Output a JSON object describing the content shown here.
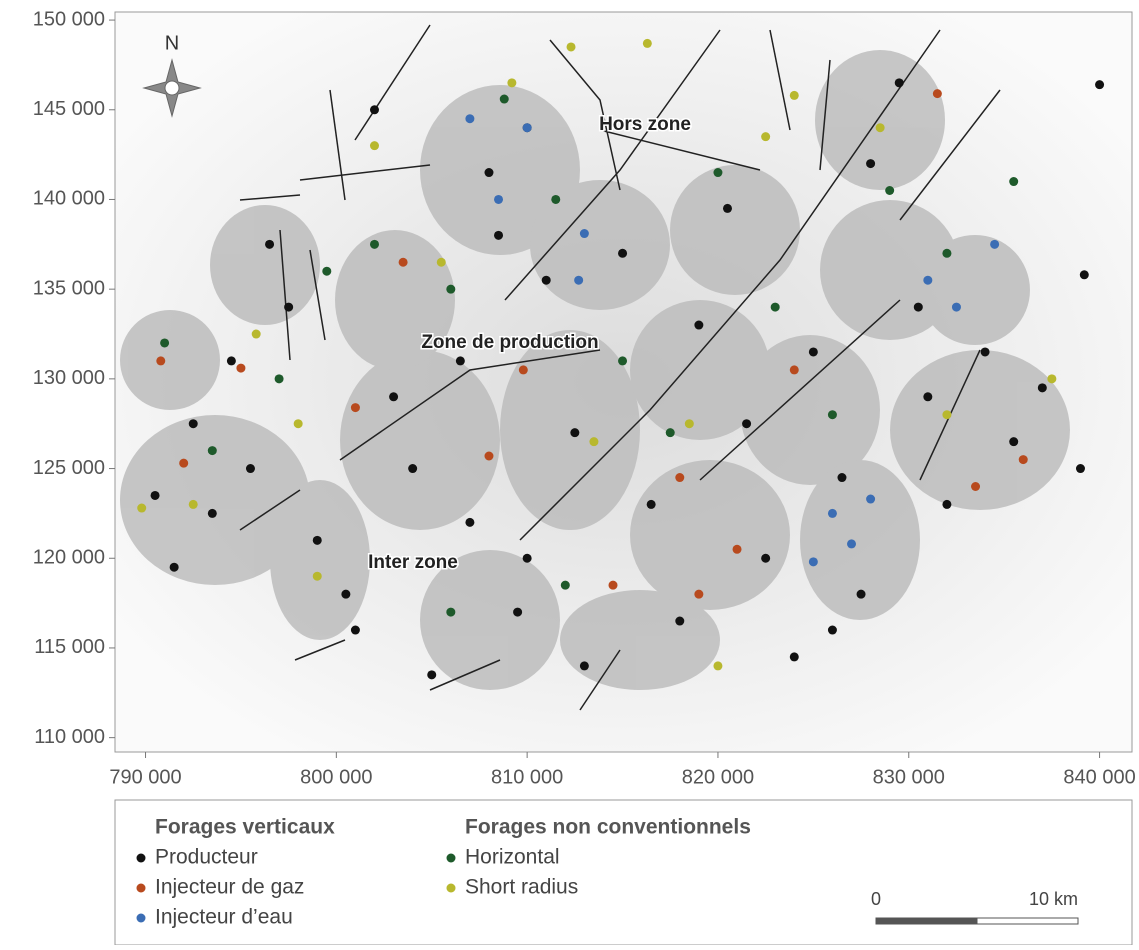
{
  "chart_data": {
    "type": "scatter",
    "north_label": "N",
    "annotations": [
      "Hors zone",
      "Zone de production",
      "Inter zone"
    ],
    "legend_groups": [
      "Forages verticaux",
      "Forages non conventionnels"
    ],
    "scale_bar_labels": [
      "0",
      "10 km"
    ],
    "xlim": [
      788400,
      841700
    ],
    "ylim": [
      109200,
      150450
    ],
    "grid": false,
    "xticks": [
      {
        "value": 790000,
        "label": "790 000"
      },
      {
        "value": 800000,
        "label": "800 000"
      },
      {
        "value": 810000,
        "label": "810 000"
      },
      {
        "value": 820000,
        "label": "820 000"
      },
      {
        "value": 830000,
        "label": "830 000"
      },
      {
        "value": 840000,
        "label": "840 000"
      }
    ],
    "yticks": [
      {
        "value": 110000,
        "label": "110 000"
      },
      {
        "value": 115000,
        "label": "115 000"
      },
      {
        "value": 120000,
        "label": "120 000"
      },
      {
        "value": 125000,
        "label": "125 000"
      },
      {
        "value": 130000,
        "label": "130 000"
      },
      {
        "value": 135000,
        "label": "135 000"
      },
      {
        "value": 140000,
        "label": "140 000"
      },
      {
        "value": 145000,
        "label": "145 000"
      },
      {
        "value": 150000,
        "label": "150 000"
      }
    ],
    "series": [
      {
        "name": "Producteur",
        "color": "#111111",
        "x": [
          790500,
          791500,
          792500,
          793500,
          794500,
          795500,
          796500,
          797500,
          799000,
          800500,
          801000,
          803000,
          804000,
          805000,
          806500,
          807000,
          808000,
          808500,
          809500,
          810000,
          811000,
          812500,
          813000,
          815000,
          816500,
          818000,
          819000,
          820500,
          821500,
          822500,
          824000,
          825000,
          826500,
          828000,
          829500,
          830500,
          831000,
          832000,
          834000,
          835500,
          837000,
          839000,
          840000,
          839200,
          827500,
          826000,
          810000,
          802000
        ],
        "values": [
          123500,
          119500,
          127500,
          122500,
          131000,
          125000,
          137500,
          134000,
          121000,
          118000,
          116000,
          129000,
          125000,
          113500,
          131000,
          122000,
          141500,
          138000,
          117000,
          120000,
          135500,
          127000,
          114000,
          137000,
          123000,
          116500,
          133000,
          139500,
          127500,
          120000,
          114500,
          131500,
          124500,
          142000,
          146500,
          134000,
          129000,
          123000,
          131500,
          126500,
          129500,
          125000,
          146400,
          135800,
          118000,
          116000,
          144000,
          145000
        ]
      },
      {
        "name": "Injecteur de gaz",
        "color": "#b84a1e",
        "x": [
          790800,
          792000,
          795000,
          801000,
          803500,
          808000,
          809800,
          814500,
          818000,
          821000,
          824000,
          831500,
          833500,
          836000,
          819000
        ],
        "values": [
          131000,
          125300,
          130600,
          128400,
          136500,
          125700,
          130500,
          118500,
          124500,
          120500,
          130500,
          145900,
          124000,
          125500,
          118000
        ]
      },
      {
        "name": "Injecteur d’eau",
        "color": "#3b6db4",
        "x": [
          807000,
          808500,
          810000,
          812700,
          813000,
          826000,
          827000,
          828000,
          831000,
          832500,
          834500,
          825000
        ],
        "values": [
          144500,
          140000,
          144000,
          135500,
          138100,
          122500,
          120800,
          123300,
          135500,
          134000,
          137500,
          119800
        ]
      },
      {
        "name": "Horizontal",
        "color": "#1e5a2b",
        "x": [
          791000,
          793500,
          797000,
          799500,
          802000,
          806000,
          808800,
          811500,
          815000,
          817500,
          820000,
          823000,
          826000,
          829000,
          832000,
          835500,
          812000,
          806000
        ],
        "values": [
          132000,
          126000,
          130000,
          136000,
          137500,
          135000,
          145600,
          140000,
          131000,
          127000,
          141500,
          134000,
          128000,
          140500,
          137000,
          141000,
          118500,
          117000
        ]
      },
      {
        "name": "Short radius",
        "color": "#b8b82e",
        "x": [
          789800,
          792500,
          795800,
          798000,
          799000,
          802000,
          805500,
          809200,
          812300,
          816300,
          813500,
          818500,
          822500,
          824000,
          828500,
          832000,
          837500,
          820000
        ],
        "values": [
          122800,
          123000,
          132500,
          127500,
          119000,
          143000,
          136500,
          146500,
          148500,
          148700,
          126500,
          127500,
          143500,
          145800,
          144000,
          128000,
          130000,
          114000
        ]
      }
    ]
  }
}
